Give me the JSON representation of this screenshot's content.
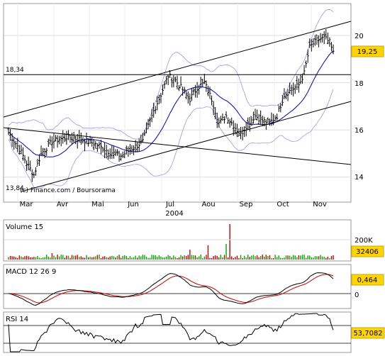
{
  "chart_data": [
    {
      "type": "candlestick",
      "panel": "price",
      "title": "",
      "source_label": "(c) Finance.com / Boursorama",
      "x_period": "2004",
      "months": [
        "Mar",
        "Avr",
        "Mai",
        "Jun",
        "Jul",
        "Aou",
        "Sep",
        "Oct",
        "Nov"
      ],
      "y_ticks": [
        "14",
        "16",
        "18",
        "20"
      ],
      "ylim": [
        13.2,
        21.5
      ],
      "last_price_label": "19,25",
      "last_price": 19.25,
      "level_labels": [
        "18,34",
        "13,84"
      ],
      "level_values": [
        18.34,
        13.84
      ],
      "overlays": [
        "moving average (blue)",
        "Bollinger bands (light blue)",
        "trend channel lines (black)"
      ],
      "colors": {
        "price": "#000000",
        "moving_average": "#0000cc",
        "bollinger": "#9999ee",
        "last_price_badge": "#ffd400"
      }
    },
    {
      "type": "bar",
      "panel": "volume",
      "label": "Volume 15",
      "y_tick": "200K",
      "last_value_label": "32406",
      "colors": {
        "up": "#00aa00",
        "down": "#cc0000"
      }
    },
    {
      "type": "line",
      "panel": "macd",
      "label": "MACD 12 26 9",
      "y_tick": "0",
      "last_value_label": "0,464",
      "colors": {
        "macd": "#000000",
        "signal": "#cc0000"
      }
    },
    {
      "type": "line",
      "panel": "rsi",
      "label": "RSI 14",
      "last_value_label": "53,7082",
      "colors": {
        "rsi": "#000000"
      }
    }
  ]
}
